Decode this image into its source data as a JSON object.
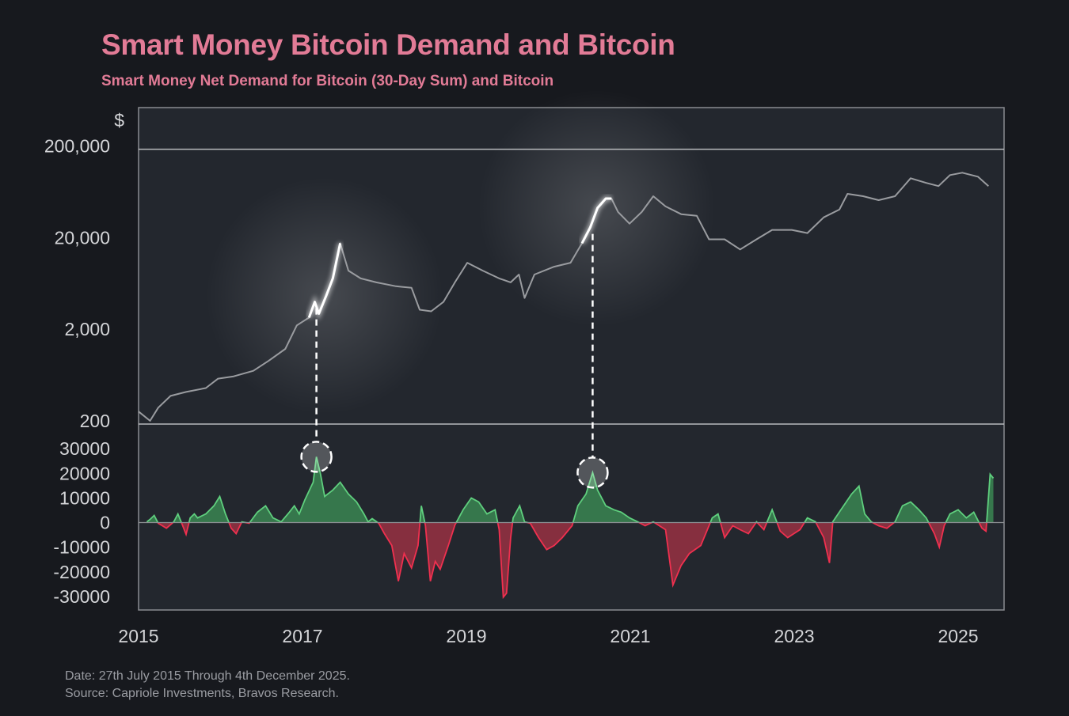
{
  "chart_data": [
    {
      "type": "line",
      "title": "Smart Money Bitcoin Demand and Bitcoin",
      "subtitle": "Smart Money Net Demand for Bitcoin (30-Day Sum) and Bitcoin",
      "ylabel": "$",
      "yscale": "log",
      "ylim": [
        200,
        570000
      ],
      "yticks": [
        "200,000",
        "20,000",
        "2,000",
        "200"
      ],
      "ytick_values": [
        200000,
        20000,
        2000,
        200
      ],
      "line_color": "#9a9ca0",
      "highlight_color": "#ffffff",
      "highlight_ranges": [
        [
          2017.08,
          2017.46
        ],
        [
          2020.41,
          2020.77
        ]
      ],
      "series": [
        {
          "points": [
            [
              2015.0,
              274
            ],
            [
              2015.14,
              217
            ],
            [
              2015.24,
              302
            ],
            [
              2015.39,
              406
            ],
            [
              2015.58,
              448
            ],
            [
              2015.82,
              494
            ],
            [
              2015.97,
              626
            ],
            [
              2016.16,
              664
            ],
            [
              2016.4,
              762
            ],
            [
              2016.59,
              985
            ],
            [
              2016.79,
              1323
            ],
            [
              2016.93,
              2388
            ],
            [
              2017.08,
              2906
            ],
            [
              2017.15,
              4310
            ],
            [
              2017.2,
              3210
            ],
            [
              2017.29,
              5040
            ],
            [
              2017.37,
              7780
            ],
            [
              2017.46,
              18850
            ],
            [
              2017.56,
              9460
            ],
            [
              2017.71,
              7780
            ],
            [
              2017.9,
              7050
            ],
            [
              2018.14,
              6390
            ],
            [
              2018.33,
              6140
            ],
            [
              2018.43,
              3540
            ],
            [
              2018.57,
              3400
            ],
            [
              2018.72,
              4310
            ],
            [
              2018.86,
              7050
            ],
            [
              2019.01,
              11530
            ],
            [
              2019.2,
              9460
            ],
            [
              2019.4,
              7780
            ],
            [
              2019.54,
              7050
            ],
            [
              2019.64,
              8580
            ],
            [
              2019.71,
              4760
            ],
            [
              2019.83,
              8580
            ],
            [
              2020.07,
              10440
            ],
            [
              2020.27,
              11530
            ],
            [
              2020.41,
              18850
            ],
            [
              2020.51,
              27940
            ],
            [
              2020.6,
              45700
            ],
            [
              2020.7,
              57900
            ],
            [
              2020.77,
              57900
            ],
            [
              2020.85,
              41400
            ],
            [
              2020.99,
              30800
            ],
            [
              2021.14,
              41400
            ],
            [
              2021.28,
              61400
            ],
            [
              2021.43,
              47500
            ],
            [
              2021.62,
              39100
            ],
            [
              2021.81,
              37600
            ],
            [
              2021.96,
              20800
            ],
            [
              2022.15,
              20800
            ],
            [
              2022.34,
              16100
            ],
            [
              2022.54,
              20800
            ],
            [
              2022.73,
              26350
            ],
            [
              2022.97,
              26350
            ],
            [
              2023.16,
              24300
            ],
            [
              2023.36,
              36100
            ],
            [
              2023.55,
              43900
            ],
            [
              2023.65,
              65200
            ],
            [
              2023.84,
              61400
            ],
            [
              2024.03,
              55600
            ],
            [
              2024.23,
              61400
            ],
            [
              2024.42,
              96600
            ],
            [
              2024.61,
              85800
            ],
            [
              2024.76,
              79300
            ],
            [
              2024.9,
              104500
            ],
            [
              2025.05,
              110900
            ],
            [
              2025.24,
              100400
            ],
            [
              2025.37,
              79300
            ]
          ]
        }
      ]
    },
    {
      "type": "area",
      "ylim": [
        -35500,
        40000
      ],
      "yticks": [
        "30000",
        "20000",
        "10000",
        "0",
        "-10000",
        "-20000",
        "-30000"
      ],
      "ytick_values": [
        30000,
        20000,
        10000,
        0,
        -10000,
        -20000,
        -30000
      ],
      "positive_color": "#3f9a5a",
      "negative_color": "#d8364f",
      "annotations": [
        {
          "x": 2017.17,
          "y": 26700
        },
        {
          "x": 2020.54,
          "y": 20300
        }
      ],
      "series": [
        {
          "points": [
            [
              2015.1,
              300
            ],
            [
              2015.14,
              1300
            ],
            [
              2015.19,
              2900
            ],
            [
              2015.24,
              -300
            ],
            [
              2015.34,
              -2300
            ],
            [
              2015.43,
              300
            ],
            [
              2015.48,
              3500
            ],
            [
              2015.53,
              -600
            ],
            [
              2015.58,
              -4800
            ],
            [
              2015.63,
              1900
            ],
            [
              2015.68,
              3500
            ],
            [
              2015.72,
              1900
            ],
            [
              2015.82,
              3500
            ],
            [
              2015.92,
              6800
            ],
            [
              2015.99,
              10600
            ],
            [
              2016.06,
              3500
            ],
            [
              2016.13,
              -2300
            ],
            [
              2016.19,
              -4500
            ],
            [
              2016.26,
              300
            ],
            [
              2016.35,
              -300
            ],
            [
              2016.45,
              4200
            ],
            [
              2016.55,
              6800
            ],
            [
              2016.64,
              1900
            ],
            [
              2016.74,
              300
            ],
            [
              2016.84,
              4200
            ],
            [
              2016.9,
              6800
            ],
            [
              2016.96,
              3500
            ],
            [
              2017.03,
              9300
            ],
            [
              2017.13,
              16400
            ],
            [
              2017.17,
              26700
            ],
            [
              2017.22,
              19600
            ],
            [
              2017.27,
              10600
            ],
            [
              2017.37,
              13200
            ],
            [
              2017.46,
              16400
            ],
            [
              2017.56,
              11600
            ],
            [
              2017.66,
              8400
            ],
            [
              2017.75,
              3500
            ],
            [
              2017.8,
              300
            ],
            [
              2017.85,
              1600
            ],
            [
              2017.93,
              -300
            ],
            [
              2018.0,
              -4500
            ],
            [
              2018.09,
              -9300
            ],
            [
              2018.17,
              -23800
            ],
            [
              2018.24,
              -12600
            ],
            [
              2018.33,
              -18400
            ],
            [
              2018.41,
              -9300
            ],
            [
              2018.45,
              6800
            ],
            [
              2018.5,
              -1300
            ],
            [
              2018.56,
              -23800
            ],
            [
              2018.62,
              -15800
            ],
            [
              2018.68,
              -19000
            ],
            [
              2018.78,
              -9300
            ],
            [
              2018.86,
              -1000
            ],
            [
              2018.96,
              5200
            ],
            [
              2019.06,
              10000
            ],
            [
              2019.15,
              8400
            ],
            [
              2019.25,
              3500
            ],
            [
              2019.35,
              5200
            ],
            [
              2019.4,
              -2900
            ],
            [
              2019.45,
              -30300
            ],
            [
              2019.49,
              -28700
            ],
            [
              2019.54,
              -6100
            ],
            [
              2019.57,
              1900
            ],
            [
              2019.65,
              6800
            ],
            [
              2019.71,
              300
            ],
            [
              2019.78,
              -300
            ],
            [
              2019.88,
              -6100
            ],
            [
              2019.98,
              -11000
            ],
            [
              2020.07,
              -9300
            ],
            [
              2020.17,
              -6100
            ],
            [
              2020.29,
              -1300
            ],
            [
              2020.36,
              6800
            ],
            [
              2020.46,
              11600
            ],
            [
              2020.54,
              20300
            ],
            [
              2020.6,
              13200
            ],
            [
              2020.7,
              6800
            ],
            [
              2020.8,
              5200
            ],
            [
              2020.89,
              4200
            ],
            [
              2020.99,
              1900
            ],
            [
              2021.09,
              300
            ],
            [
              2021.18,
              -1300
            ],
            [
              2021.28,
              300
            ],
            [
              2021.43,
              -2900
            ],
            [
              2021.52,
              -25400
            ],
            [
              2021.62,
              -17400
            ],
            [
              2021.72,
              -12600
            ],
            [
              2021.86,
              -9300
            ],
            [
              2021.94,
              -2900
            ],
            [
              2022.0,
              1900
            ],
            [
              2022.07,
              3500
            ],
            [
              2022.15,
              -6100
            ],
            [
              2022.25,
              -1300
            ],
            [
              2022.34,
              -2900
            ],
            [
              2022.44,
              -4500
            ],
            [
              2022.54,
              300
            ],
            [
              2022.63,
              -2900
            ],
            [
              2022.73,
              5200
            ],
            [
              2022.83,
              -3500
            ],
            [
              2022.92,
              -6100
            ],
            [
              2023.07,
              -2900
            ],
            [
              2023.16,
              1900
            ],
            [
              2023.26,
              300
            ],
            [
              2023.36,
              -6100
            ],
            [
              2023.43,
              -16400
            ],
            [
              2023.47,
              300
            ],
            [
              2023.57,
              5200
            ],
            [
              2023.7,
              11600
            ],
            [
              2023.79,
              14800
            ],
            [
              2023.86,
              3500
            ],
            [
              2023.94,
              300
            ],
            [
              2024.03,
              -1300
            ],
            [
              2024.13,
              -2300
            ],
            [
              2024.23,
              300
            ],
            [
              2024.32,
              6800
            ],
            [
              2024.42,
              8400
            ],
            [
              2024.52,
              5200
            ],
            [
              2024.61,
              1900
            ],
            [
              2024.71,
              -4500
            ],
            [
              2024.77,
              -10000
            ],
            [
              2024.83,
              -1300
            ],
            [
              2024.9,
              3500
            ],
            [
              2025.0,
              5200
            ],
            [
              2025.1,
              1900
            ],
            [
              2025.19,
              4200
            ],
            [
              2025.29,
              -2300
            ],
            [
              2025.34,
              -3500
            ],
            [
              2025.39,
              19600
            ],
            [
              2025.43,
              18000
            ]
          ]
        }
      ]
    }
  ],
  "xaxis": {
    "ticks": [
      "2015",
      "2017",
      "2019",
      "2021",
      "2023",
      "2025"
    ],
    "tick_values": [
      2015,
      2017,
      2019,
      2021,
      2023,
      2025
    ],
    "xlim": [
      2015,
      2025.56
    ]
  },
  "header": {
    "title": "Smart Money Bitcoin Demand and Bitcoin",
    "subtitle": "Smart Money Net Demand for Bitcoin (30-Day Sum) and Bitcoin"
  },
  "footer": {
    "date": "Date: 27th July 2015 Through 4th December 2025.",
    "source": "Source: Capriole Investments, Bravos Research."
  }
}
